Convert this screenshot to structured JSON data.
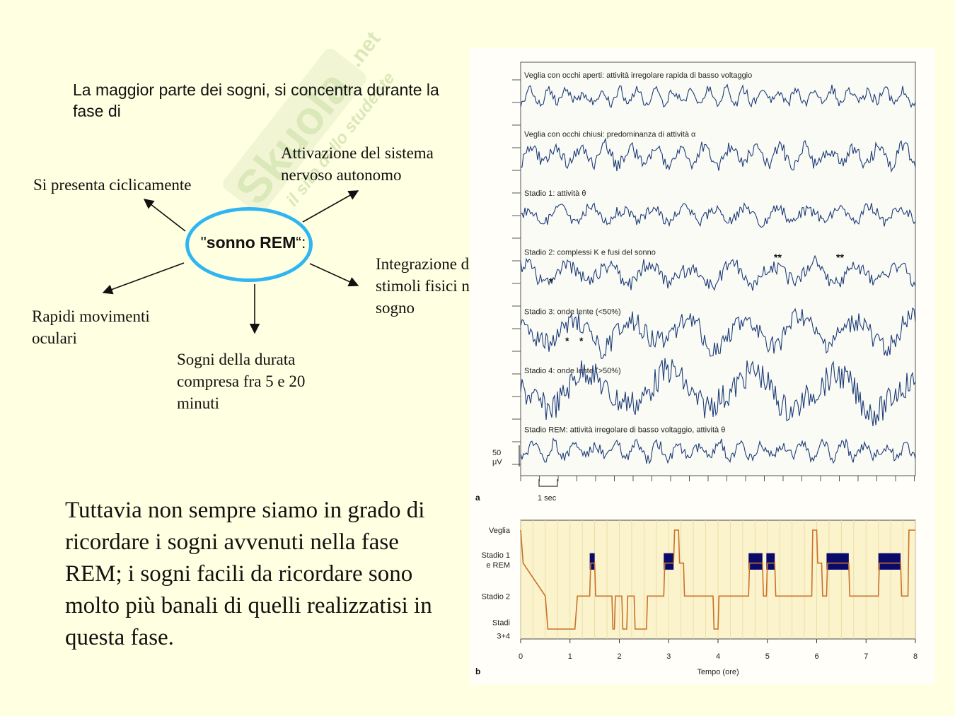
{
  "intro_text": "La maggior parte dei sogni, si concentra durante la fase di",
  "center": {
    "label_prefix": "\"",
    "label_main": "sonno REM",
    "label_suffix": "“:"
  },
  "nodes": {
    "cyclic": "Si presenta ciclicamente",
    "autonomic": "Attivazione del sistema nervoso autonomo",
    "integration": "Integrazione di stimoli fisici nel sogno",
    "eye_movements": "Rapidi movimenti oculari",
    "duration": "Sogni della durata compresa fra 5 e 20 minuti"
  },
  "note_text": "Tuttavia non sempre siamo in grado di ricordare i sogni avvenuti nella fase REM; i sogni facili da ricordare sono molto più banali di quelli realizzatisi in questa fase.",
  "watermark": {
    "brand": "Skuola",
    "brand_suffix": ".net",
    "tagline": "il sito dello studente"
  },
  "colors": {
    "background": "#ffffe1",
    "ellipse": "#2fb6f2",
    "trace": "#1c3c78",
    "hypnogram_line": "#c9712a",
    "rem_block": "#0a0a6b"
  },
  "figure": {
    "panel_a": {
      "label": "a",
      "traces": [
        {
          "title": "Veglia con occhi aperti: attività irregolare rapida di basso voltaggio",
          "amplitude": 0.25,
          "frequency": 7,
          "seed": 1
        },
        {
          "title": "Veglia con occhi chiusi: predominanza di attività α",
          "amplitude": 0.4,
          "frequency": 5,
          "seed": 2
        },
        {
          "title": "Stadio 1: attività θ",
          "amplitude": 0.3,
          "frequency": 4,
          "seed": 3
        },
        {
          "title": "Stadio 2: complessi K e fusi del sonno",
          "amplitude": 0.45,
          "frequency": 3,
          "seed": 4
        },
        {
          "title": "Stadio 3: onde lente (<50%)",
          "amplitude": 0.7,
          "frequency": 2.2,
          "seed": 5
        },
        {
          "title": "Stadio 4: onde lente (>50%)",
          "amplitude": 1.0,
          "frequency": 1.5,
          "seed": 6
        },
        {
          "title": "Stadio REM: attività irregolare di basso voltaggio, attività θ",
          "amplitude": 0.3,
          "frequency": 6,
          "seed": 7
        }
      ],
      "markers": [
        {
          "trace": 3,
          "symbol": "*"
        },
        {
          "trace": 3,
          "symbol": "**"
        },
        {
          "trace": 3,
          "symbol": "**"
        },
        {
          "trace": 4,
          "symbol": "*"
        },
        {
          "trace": 4,
          "symbol": "*"
        }
      ],
      "scale_voltage_line1": "50",
      "scale_voltage_line2": "μV",
      "scale_time": "1 sec"
    },
    "panel_b": {
      "label": "b",
      "y_labels": [
        {
          "text": "Veglia",
          "level": 3
        },
        {
          "text": "Stadio 1",
          "level": 2.25
        },
        {
          "text": "e REM",
          "level": 1.95
        },
        {
          "text": "Stadio 2",
          "level": 1
        },
        {
          "text": "Stadi",
          "level": 0.2
        },
        {
          "text": "3+4",
          "level": -0.2
        }
      ],
      "x_ticks": [
        "0",
        "1",
        "2",
        "3",
        "4",
        "5",
        "6",
        "7",
        "8"
      ],
      "xlabel": "Tempo (ore)",
      "hypnogram": [
        [
          0,
          3
        ],
        [
          0.05,
          2
        ],
        [
          0.5,
          1
        ],
        [
          0.55,
          0
        ],
        [
          1.1,
          0
        ],
        [
          1.15,
          1
        ],
        [
          1.4,
          1
        ],
        [
          1.42,
          2
        ],
        [
          1.5,
          2
        ],
        [
          1.52,
          1
        ],
        [
          1.85,
          1
        ],
        [
          1.87,
          0
        ],
        [
          1.9,
          0
        ],
        [
          1.92,
          1
        ],
        [
          2.05,
          1
        ],
        [
          2.07,
          0
        ],
        [
          2.15,
          0
        ],
        [
          2.17,
          1
        ],
        [
          2.3,
          1
        ],
        [
          2.32,
          0
        ],
        [
          2.55,
          0
        ],
        [
          2.57,
          1
        ],
        [
          2.9,
          1
        ],
        [
          2.92,
          2
        ],
        [
          3.1,
          2
        ],
        [
          3.12,
          3
        ],
        [
          3.2,
          3
        ],
        [
          3.22,
          2
        ],
        [
          3.3,
          2
        ],
        [
          3.32,
          1
        ],
        [
          3.9,
          1
        ],
        [
          3.92,
          0
        ],
        [
          4.0,
          0
        ],
        [
          4.02,
          1
        ],
        [
          4.62,
          1
        ],
        [
          4.64,
          2
        ],
        [
          4.9,
          2
        ],
        [
          4.92,
          1
        ],
        [
          4.98,
          1
        ],
        [
          5.0,
          2
        ],
        [
          5.15,
          2
        ],
        [
          5.17,
          1
        ],
        [
          5.9,
          1
        ],
        [
          5.92,
          3
        ],
        [
          6.0,
          3
        ],
        [
          6.02,
          2
        ],
        [
          6.1,
          2
        ],
        [
          6.12,
          1
        ],
        [
          6.2,
          1
        ],
        [
          6.22,
          2
        ],
        [
          6.65,
          2
        ],
        [
          6.67,
          1
        ],
        [
          7.25,
          1
        ],
        [
          7.27,
          2
        ],
        [
          7.7,
          2
        ],
        [
          7.72,
          1
        ],
        [
          7.85,
          1
        ],
        [
          7.87,
          3
        ],
        [
          8.0,
          3
        ]
      ],
      "rem_periods": [
        [
          1.4,
          1.5
        ],
        [
          2.9,
          3.1
        ],
        [
          4.62,
          4.9
        ],
        [
          4.98,
          5.15
        ],
        [
          6.2,
          6.65
        ],
        [
          7.25,
          7.7
        ]
      ],
      "y_range": [
        -0.3,
        3.3
      ]
    }
  }
}
